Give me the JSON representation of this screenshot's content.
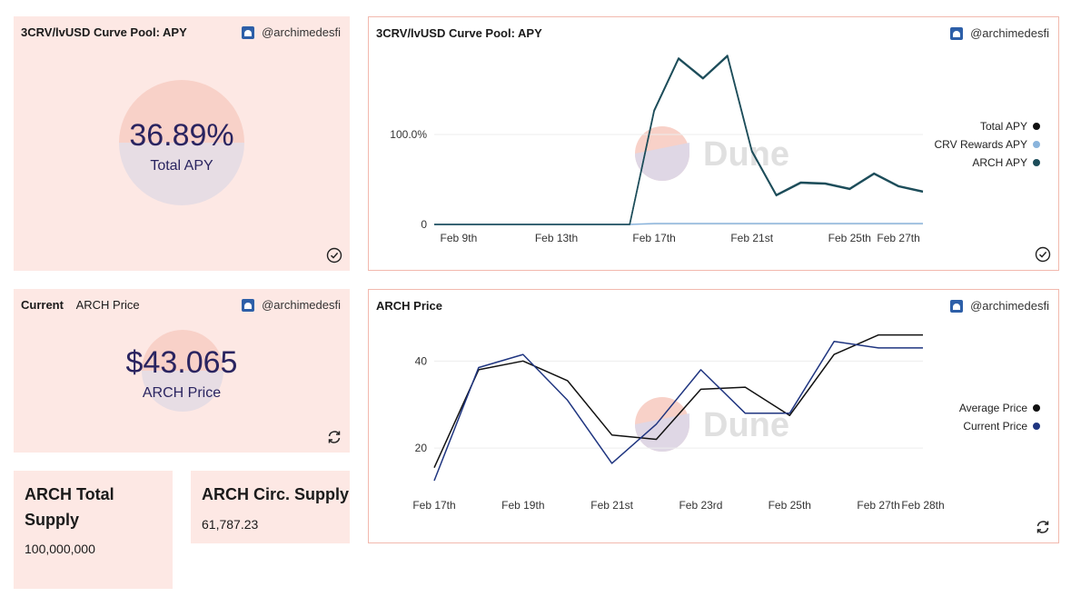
{
  "apy_counter": {
    "title": "3CRV/lvUSD Curve Pool: APY",
    "author": "@archimedesfi",
    "value": "36.89%",
    "label": "Total APY"
  },
  "apy_chart": {
    "title": "3CRV/lvUSD Curve Pool: APY",
    "author": "@archimedesfi",
    "watermark": "Dune",
    "legend": [
      {
        "name": "Total APY",
        "color": "#111111"
      },
      {
        "name": "CRV Rewards APY",
        "color": "#8ab4dc"
      },
      {
        "name": "ARCH APY",
        "color": "#1d4d5a"
      }
    ]
  },
  "price_counter": {
    "title": "Current",
    "title2": "ARCH Price",
    "author": "@archimedesfi",
    "value": "$43.065",
    "label": "ARCH Price"
  },
  "price_chart": {
    "title": "ARCH Price",
    "author": "@archimedesfi",
    "watermark": "Dune",
    "legend": [
      {
        "name": "Average Price",
        "color": "#111111"
      },
      {
        "name": "Current Price",
        "color": "#1f3580"
      }
    ]
  },
  "total_supply": {
    "title": "ARCH Total Supply",
    "value": "100,000,000"
  },
  "circ_supply": {
    "title": "ARCH Circ. Supply",
    "value": "61,787.23"
  },
  "chart_data": [
    {
      "type": "line",
      "title": "3CRV/lvUSD Curve Pool: APY",
      "x": [
        "Feb 8",
        "Feb 9",
        "Feb 10",
        "Feb 11",
        "Feb 12",
        "Feb 13",
        "Feb 14",
        "Feb 15",
        "Feb 16",
        "Feb 17",
        "Feb 18",
        "Feb 19",
        "Feb 20",
        "Feb 21",
        "Feb 22",
        "Feb 23",
        "Feb 24",
        "Feb 25",
        "Feb 26",
        "Feb 27",
        "Feb 28"
      ],
      "tick_labels": [
        "Feb 9th",
        "Feb 13th",
        "Feb 17th",
        "Feb 21st",
        "Feb 25th",
        "Feb 27th"
      ],
      "y_ticks": [
        {
          "value": 0,
          "label": "0"
        },
        {
          "value": 100,
          "label": "100.0%"
        }
      ],
      "ylim": [
        0,
        190
      ],
      "series": [
        {
          "name": "Total APY",
          "values": [
            0,
            0,
            0,
            0,
            0,
            0,
            0,
            0,
            0,
            127,
            185,
            163,
            188,
            82,
            33,
            47,
            46,
            40,
            57,
            43,
            37
          ]
        },
        {
          "name": "CRV Rewards APY",
          "values": [
            0,
            0,
            0,
            0,
            0,
            0,
            0,
            0,
            0,
            1,
            1,
            1,
            1,
            1,
            1,
            1,
            1,
            1,
            1,
            1,
            1
          ]
        },
        {
          "name": "ARCH APY",
          "values": [
            0,
            0,
            0,
            0,
            0,
            0,
            0,
            0,
            0,
            126,
            184,
            162,
            187,
            81,
            32,
            46,
            45,
            39,
            56,
            42,
            36
          ]
        }
      ]
    },
    {
      "type": "line",
      "title": "ARCH Price",
      "x": [
        "Feb 17",
        "Feb 18",
        "Feb 19",
        "Feb 20",
        "Feb 21",
        "Feb 22",
        "Feb 23",
        "Feb 24",
        "Feb 25",
        "Feb 26",
        "Feb 27",
        "Feb 28"
      ],
      "tick_labels": [
        "Feb 17th",
        "Feb 19th",
        "Feb 21st",
        "Feb 23rd",
        "Feb 25th",
        "Feb 27th",
        "Feb 28th"
      ],
      "y_ticks": [
        {
          "value": 20,
          "label": "20"
        },
        {
          "value": 40,
          "label": "40"
        }
      ],
      "ylim": [
        10,
        48
      ],
      "series": [
        {
          "name": "Average Price",
          "values": [
            15.5,
            38,
            40,
            35.5,
            23,
            22,
            33.5,
            34,
            27.5,
            41.5,
            46,
            46
          ]
        },
        {
          "name": "Current Price",
          "values": [
            12.5,
            38.5,
            41.5,
            31,
            16.5,
            25.5,
            38,
            28,
            28,
            44.5,
            43,
            43
          ]
        }
      ]
    }
  ]
}
